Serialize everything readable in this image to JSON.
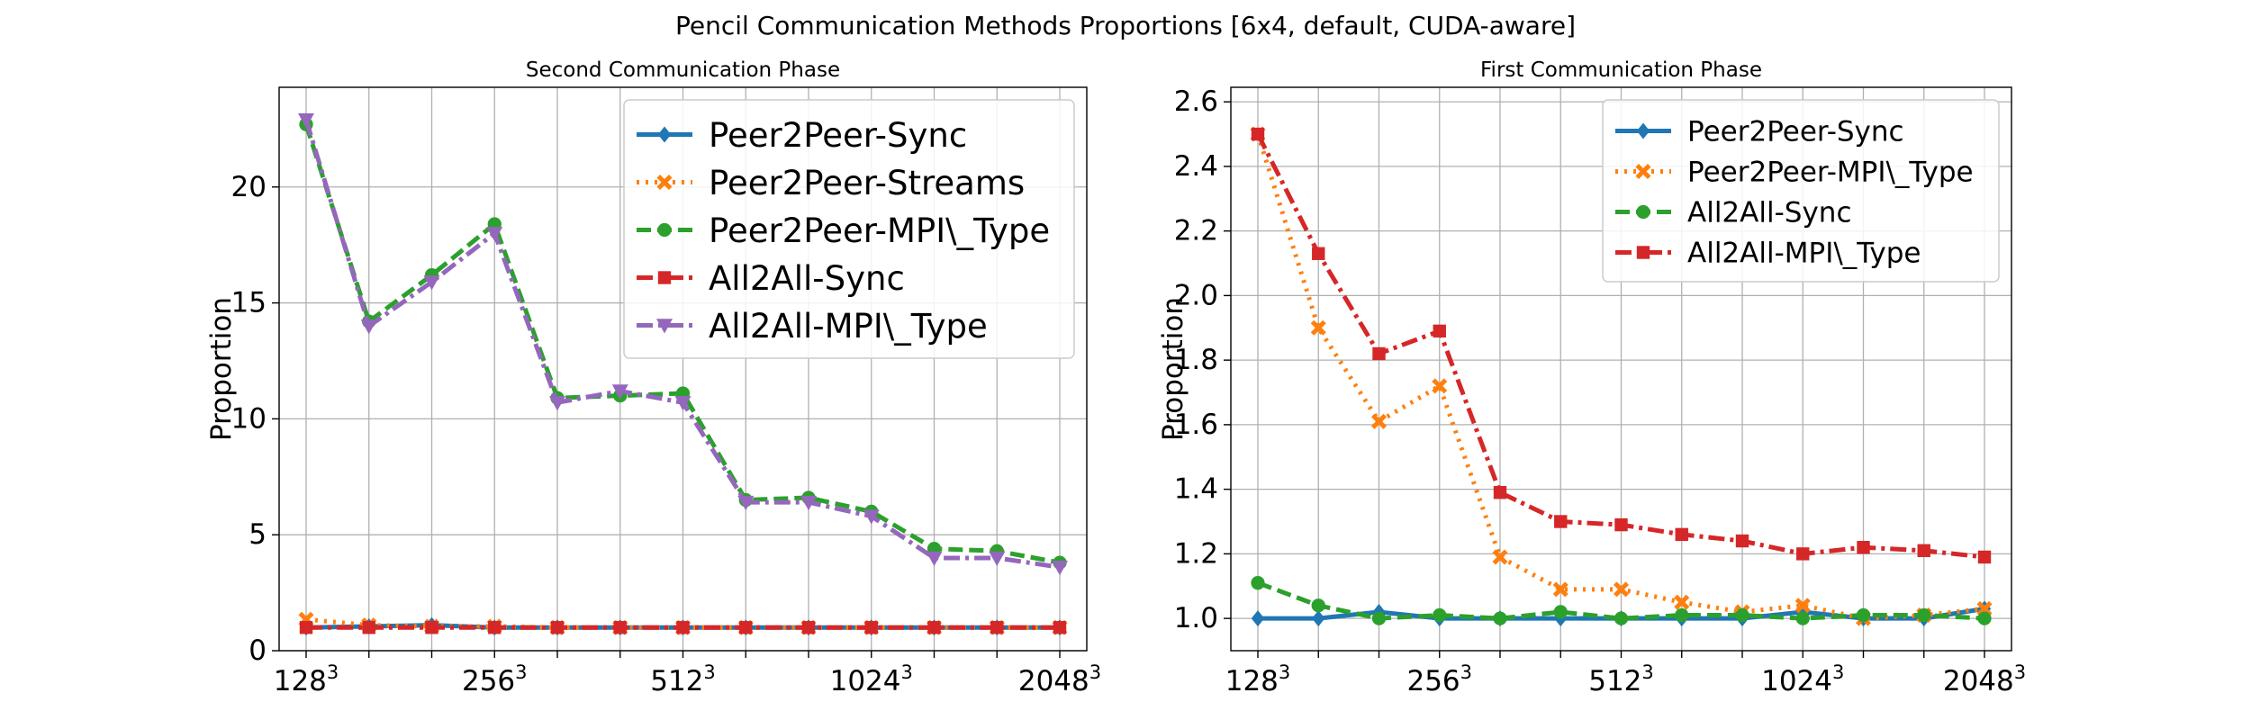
{
  "figure": {
    "suptitle": "Pencil Communication Methods Proportions [6x4, default, CUDA-aware]"
  },
  "chart_data": [
    {
      "type": "line",
      "title": "Second Communication Phase",
      "xlabel": "",
      "ylabel": "Proportion",
      "x_ticks": [
        {
          "base": "128",
          "exp": "3"
        },
        {
          "base": "256",
          "exp": "3"
        },
        {
          "base": "512",
          "exp": "3"
        },
        {
          "base": "1024",
          "exp": "3"
        },
        {
          "base": "2048",
          "exp": "3"
        }
      ],
      "x_points": 13,
      "ylim": [
        0,
        24.3
      ],
      "y_ticks": [
        "0",
        "5",
        "10",
        "15",
        "20"
      ],
      "y_tick_values": [
        0,
        5,
        10,
        15,
        20
      ],
      "grid": true,
      "legend_placement": "top-right",
      "series": [
        {
          "name": "Peer2Peer-Sync",
          "color": "#1f77b4",
          "marker": "diamond",
          "dash": "solid",
          "values": [
            1.0,
            1.05,
            1.1,
            1.0,
            1.0,
            1.0,
            1.0,
            1.0,
            1.0,
            1.0,
            1.0,
            1.0,
            1.0
          ]
        },
        {
          "name": "Peer2Peer-Streams",
          "color": "#ff7f0e",
          "marker": "x",
          "dash": "dot",
          "values": [
            1.35,
            1.1,
            1.05,
            1.05,
            1.0,
            1.0,
            1.0,
            1.0,
            1.0,
            1.0,
            1.0,
            1.0,
            1.0
          ]
        },
        {
          "name": "Peer2Peer-MPI\\_Type",
          "color": "#2ca02c",
          "marker": "circle",
          "dash": "dash",
          "values": [
            22.7,
            14.2,
            16.2,
            18.4,
            10.9,
            11.0,
            11.1,
            6.5,
            6.6,
            6.0,
            4.4,
            4.3,
            3.8
          ]
        },
        {
          "name": "All2All-Sync",
          "color": "#d62728",
          "marker": "square",
          "dash": "dashdot",
          "values": [
            1.0,
            1.0,
            1.0,
            1.0,
            1.0,
            1.0,
            1.0,
            1.0,
            1.0,
            1.0,
            1.0,
            1.0,
            1.0
          ]
        },
        {
          "name": "All2All-MPI\\_Type",
          "color": "#9467bd",
          "marker": "triangle-down",
          "dash": "dashdot",
          "values": [
            22.9,
            14.0,
            15.9,
            18.0,
            10.7,
            11.2,
            10.7,
            6.4,
            6.4,
            5.8,
            4.0,
            4.0,
            3.6
          ]
        }
      ]
    },
    {
      "type": "line",
      "title": "First Communication Phase",
      "xlabel": "",
      "ylabel": "Proportion",
      "x_ticks": [
        {
          "base": "128",
          "exp": "3"
        },
        {
          "base": "256",
          "exp": "3"
        },
        {
          "base": "512",
          "exp": "3"
        },
        {
          "base": "1024",
          "exp": "3"
        },
        {
          "base": "2048",
          "exp": "3"
        }
      ],
      "x_points": 13,
      "ylim": [
        0.9,
        2.645
      ],
      "y_ticks": [
        "1.0",
        "1.2",
        "1.4",
        "1.6",
        "1.8",
        "2.0",
        "2.2",
        "2.4",
        "2.6"
      ],
      "y_tick_values": [
        1.0,
        1.2,
        1.4,
        1.6,
        1.8,
        2.0,
        2.2,
        2.4,
        2.6
      ],
      "grid": true,
      "legend_placement": "top-right",
      "series": [
        {
          "name": "Peer2Peer-Sync",
          "color": "#1f77b4",
          "marker": "diamond",
          "dash": "solid",
          "values": [
            1.0,
            1.0,
            1.02,
            1.0,
            1.0,
            1.0,
            1.0,
            1.0,
            1.0,
            1.02,
            1.0,
            1.0,
            1.03
          ]
        },
        {
          "name": "Peer2Peer-MPI\\_Type",
          "color": "#ff7f0e",
          "marker": "x",
          "dash": "dot",
          "values": [
            2.5,
            1.9,
            1.61,
            1.72,
            1.19,
            1.09,
            1.09,
            1.05,
            1.02,
            1.04,
            1.0,
            1.01,
            1.03
          ]
        },
        {
          "name": "All2All-Sync",
          "color": "#2ca02c",
          "marker": "circle",
          "dash": "dash",
          "values": [
            1.11,
            1.04,
            1.0,
            1.01,
            1.0,
            1.02,
            1.0,
            1.01,
            1.01,
            1.0,
            1.01,
            1.01,
            1.0
          ]
        },
        {
          "name": "All2All-MPI\\_Type",
          "color": "#d62728",
          "marker": "square",
          "dash": "dashdot",
          "values": [
            2.5,
            2.13,
            1.82,
            1.89,
            1.39,
            1.3,
            1.29,
            1.26,
            1.24,
            1.2,
            1.22,
            1.21,
            1.19
          ]
        }
      ]
    }
  ]
}
